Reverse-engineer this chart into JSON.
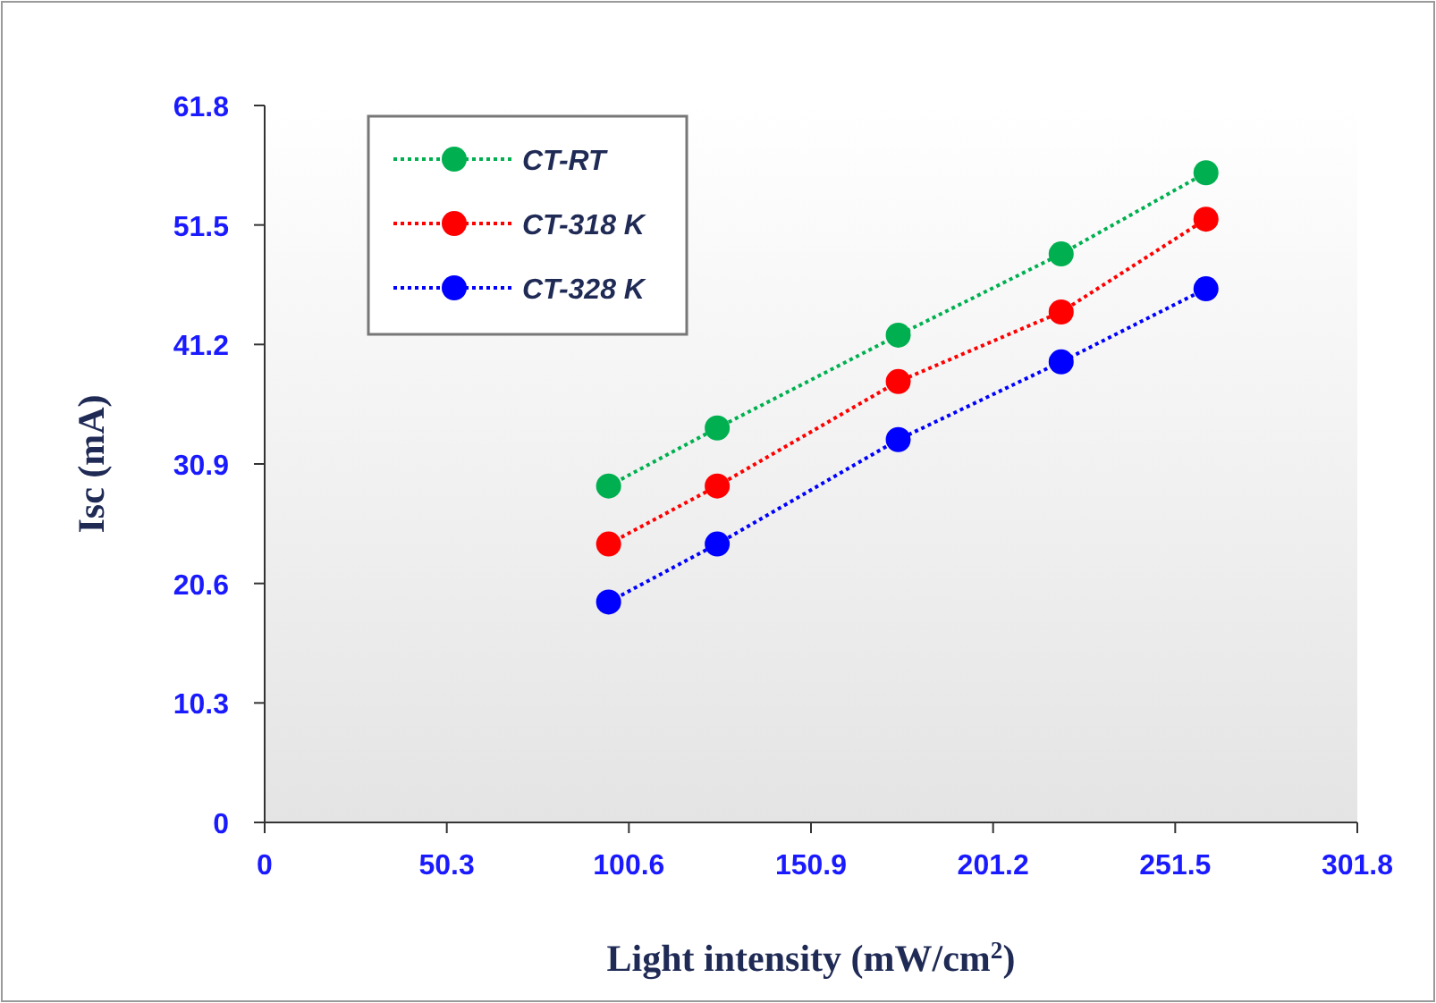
{
  "chart_data": {
    "type": "line",
    "xlabel": "Light intensity (mW/cm$^{2}$)",
    "ylabel": "Isc (mA)",
    "x": [
      95,
      125,
      175,
      220,
      260
    ],
    "series": [
      {
        "name": "CT-RT",
        "color": "#00b050",
        "values": [
          29.0,
          34.0,
          42.0,
          49.0,
          56.0
        ]
      },
      {
        "name": "CT-318 K",
        "color": "#ff0000",
        "values": [
          24.0,
          29.0,
          38.0,
          44.0,
          52.0
        ]
      },
      {
        "name": "CT-328 K",
        "color": "#0000ff",
        "values": [
          19.0,
          24.0,
          33.0,
          39.7,
          46.0
        ]
      }
    ],
    "xlim": [
      0,
      301.8
    ],
    "xticks": [
      0,
      50.3,
      100.6,
      150.9,
      201.2,
      251.5,
      301.8
    ],
    "ylim": [
      0,
      61.8
    ],
    "yticks": [
      0,
      10.3,
      20.6,
      30.9,
      41.2,
      51.5,
      61.8
    ],
    "grid": false,
    "legend": "top left",
    "marker": "circle",
    "line_style": "dotted"
  }
}
